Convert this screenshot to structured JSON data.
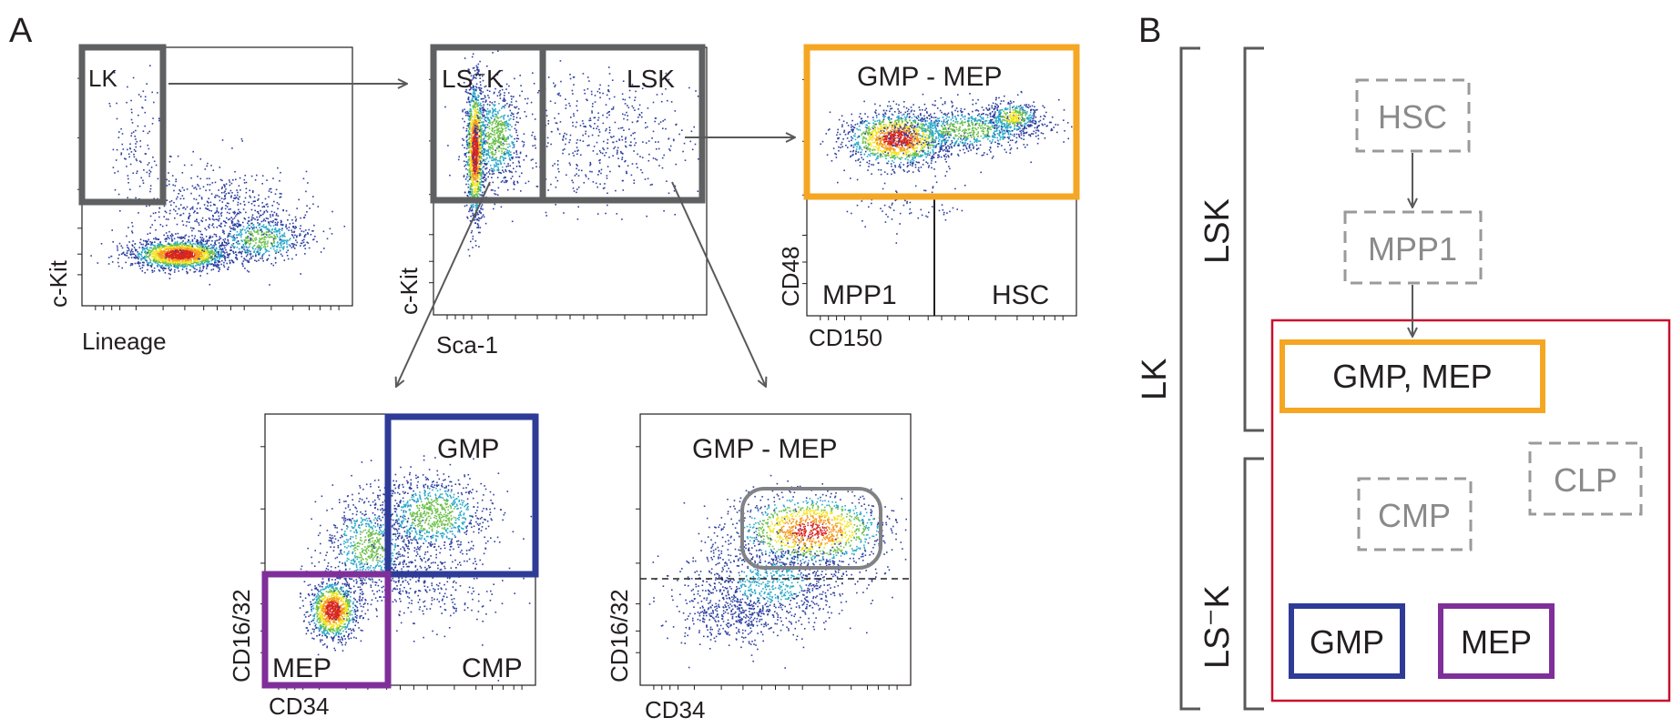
{
  "panels": {
    "A": {
      "letter": "A"
    },
    "B": {
      "letter": "B"
    }
  },
  "plots": {
    "lin_kit": {
      "xlabel": "Lineage",
      "ylabel": "c-Kit",
      "gates": {
        "lk": "LK"
      }
    },
    "sca_kit": {
      "xlabel": "Sca-1",
      "ylabel": "c-Kit",
      "gates": {
        "lsk_neg": "LS⁻K",
        "lsk": "LSK"
      }
    },
    "cd150_cd48": {
      "xlabel": "CD150",
      "ylabel": "CD48",
      "gates": {
        "gmp_mep": "GMP - MEP",
        "mpp1": "MPP1",
        "hsc": "HSC"
      }
    },
    "cd34_cd16_a": {
      "xlabel": "CD34",
      "ylabel": "CD16/32",
      "gates": {
        "gmp": "GMP",
        "mep": "MEP",
        "cmp": "CMP"
      }
    },
    "cd34_cd16_b": {
      "xlabel": "CD34",
      "ylabel": "CD16/32",
      "title": "GMP - MEP"
    }
  },
  "hierarchy": {
    "bracket_lk": "LK",
    "bracket_lsk": "LSK",
    "bracket_lsk_neg": "LS⁻K",
    "nodes": {
      "hsc": "HSC",
      "mpp1": "MPP1",
      "gmp_mep": "GMP, MEP",
      "cmp": "CMP",
      "clp": "CLP",
      "gmp": "GMP",
      "mep": "MEP"
    }
  },
  "colors": {
    "gate_gray": "#5f6062",
    "gate_orange": "#f5a623",
    "gate_blue": "#2e3b97",
    "gate_purple": "#7f2f99",
    "box_red": "#c8102e",
    "dashed_gray": "#9a9a9a"
  }
}
